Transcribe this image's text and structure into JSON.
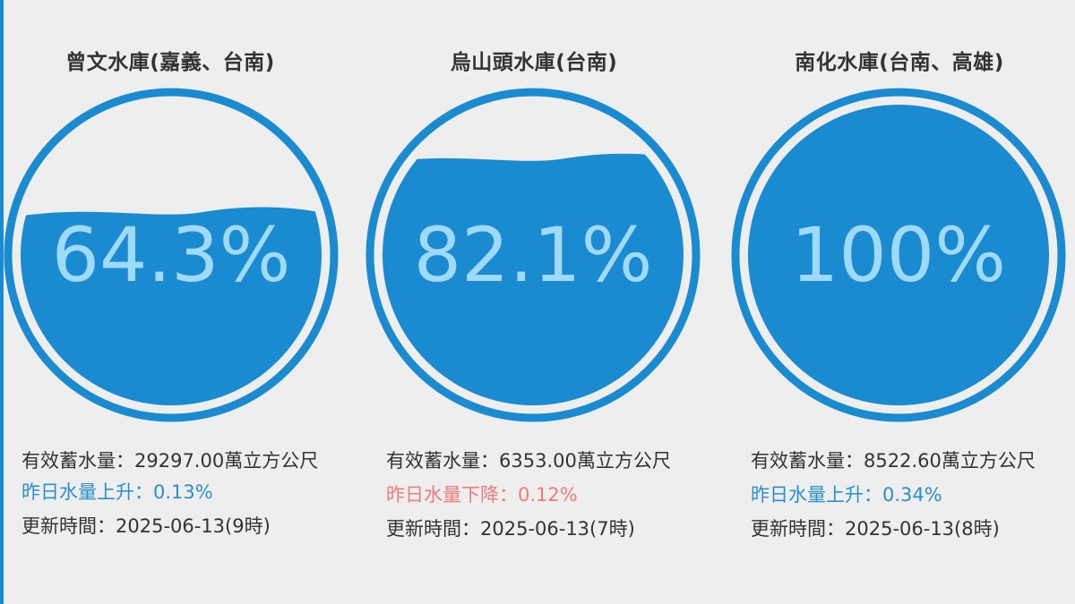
{
  "colors": {
    "accent": "#1a8bd0",
    "water": "#1a8bd0",
    "percent_text": "#9fd9fb",
    "rise": "#2a8fd0",
    "fall": "#f07b7b",
    "text": "#333333"
  },
  "reservoirs": [
    {
      "name": "曾文水庫(嘉義、台南)",
      "percent_label": "64.3%",
      "fill_fraction": 0.643,
      "storage_label": "有效蓄水量：",
      "storage_value": "29297.00萬立方公尺",
      "change_text": "昨日水量上升：0.13%",
      "change_direction": "up",
      "update_text": "更新時間：2025-06-13(9時)"
    },
    {
      "name": "烏山頭水庫(台南)",
      "percent_label": "82.1%",
      "fill_fraction": 0.821,
      "storage_label": "有效蓄水量：",
      "storage_value": "6353.00萬立方公尺",
      "change_text": "昨日水量下降：0.12%",
      "change_direction": "down",
      "update_text": "更新時間：2025-06-13(7時)"
    },
    {
      "name": "南化水庫(台南、高雄)",
      "percent_label": "100%",
      "fill_fraction": 1.0,
      "storage_label": "有效蓄水量：",
      "storage_value": "8522.60萬立方公尺",
      "change_text": "昨日水量上升：0.34%",
      "change_direction": "up",
      "update_text": "更新時間：2025-06-13(8時)"
    }
  ]
}
